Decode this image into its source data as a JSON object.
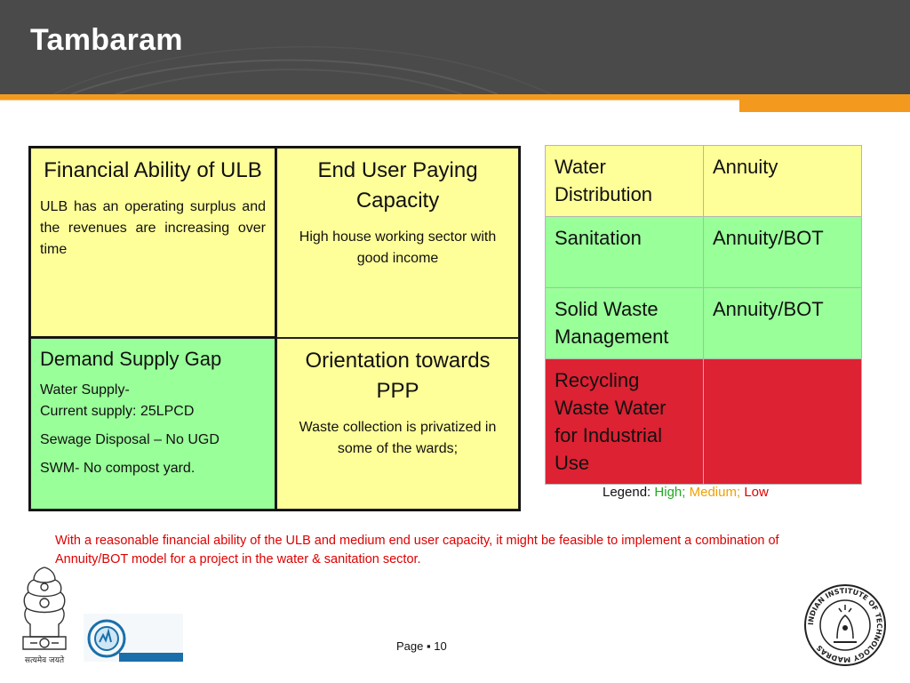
{
  "header": {
    "title": "Tambaram"
  },
  "quadrants": {
    "financial": {
      "heading": "Financial Ability of ULB",
      "body": "ULB has an operating surplus and the revenues are increasing over time"
    },
    "enduser": {
      "heading": "End User Paying Capacity",
      "body": "High house working sector with good income"
    },
    "demand": {
      "heading": "Demand Supply Gap",
      "line1": "Water Supply-",
      "line2": "Current supply: 25LPCD",
      "line3": "Sewage Disposal – No UGD",
      "line4": "SWM- No compost yard."
    },
    "ppp": {
      "heading": "Orientation towards PPP",
      "body": "Waste collection is privatized in some of the wards;"
    }
  },
  "sector_table": {
    "rows": [
      {
        "sector": "Water Distribution",
        "model": "Annuity",
        "level": "Medium",
        "color": "#ffff99"
      },
      {
        "sector": "Sanitation",
        "model": "Annuity/BOT",
        "level": "High",
        "color": "#99ff99"
      },
      {
        "sector": "Solid Waste Management",
        "model": "Annuity/BOT",
        "level": "High",
        "color": "#99ff99"
      },
      {
        "sector": "Recycling Waste Water for Industrial Use",
        "model": "",
        "level": "Low",
        "color": "#dd2233"
      }
    ]
  },
  "legend": {
    "label": "Legend:",
    "high": "High;",
    "medium": "Medium;",
    "low": "Low",
    "colors": {
      "high": "#22aa22",
      "medium": "#f0a000",
      "low": "#dd0000"
    }
  },
  "note": "With a reasonable financial ability of the ULB and medium end user capacity, it might be feasible to implement a combination of Annuity/BOT model for a project in the water  & sanitation sector.",
  "footer": {
    "page_label": "Page",
    "page_sep": "▪",
    "page_number": "10",
    "emblem_caption": "सत्यमेव जयते",
    "iitm_logo_text": "INDIAN INSTITUTE OF TECHNOLOGY MADRAS"
  },
  "theme": {
    "header_bg": "#4a4a4a",
    "accent": "#f39a1e"
  }
}
